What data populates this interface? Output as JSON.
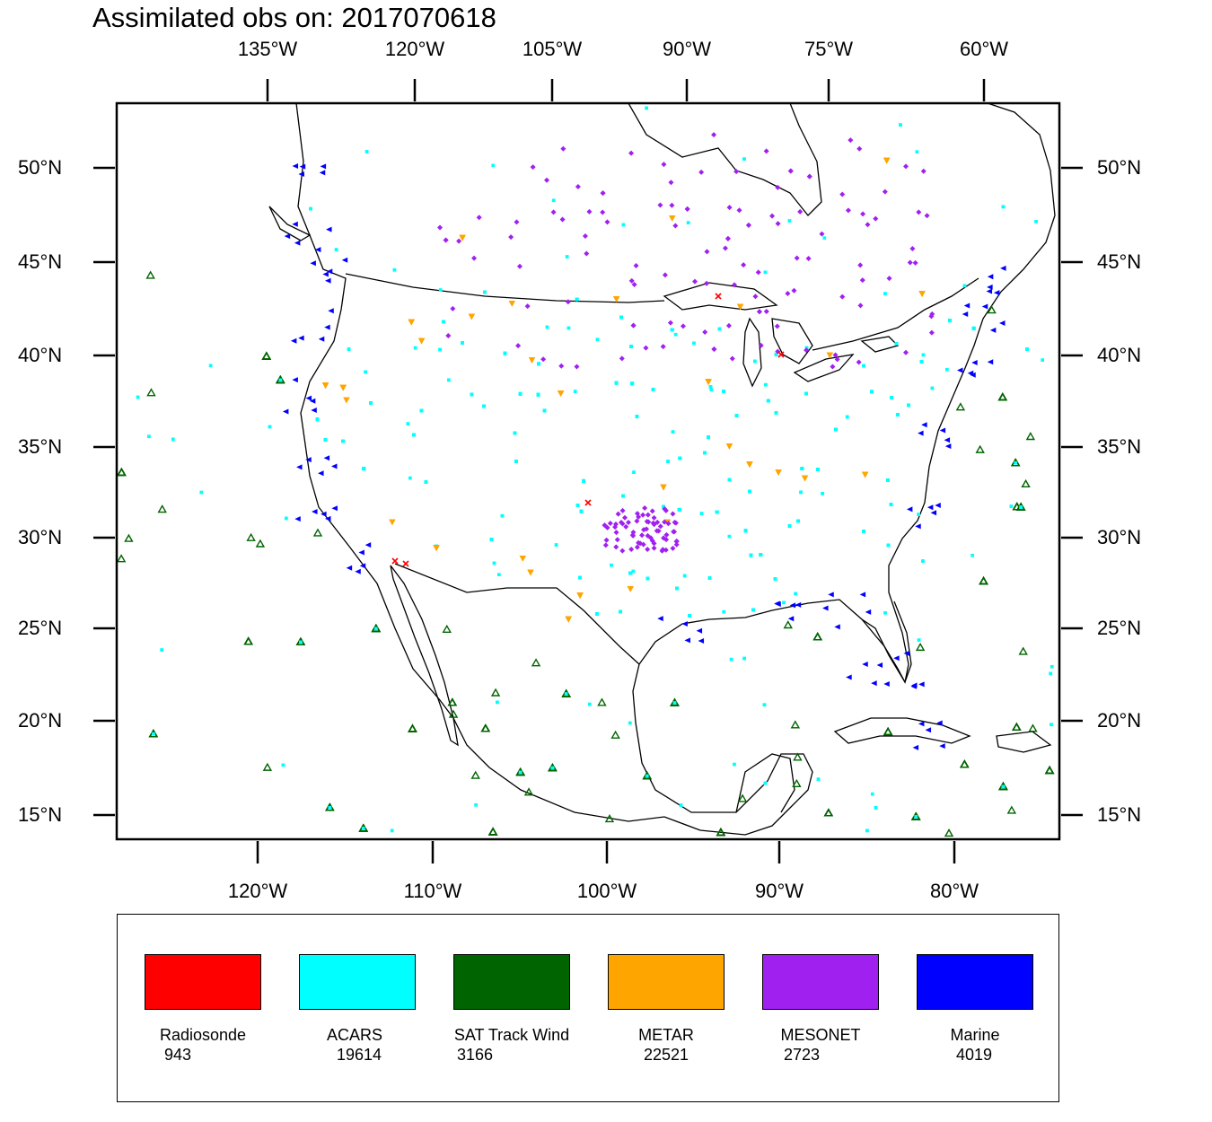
{
  "title": "Assimilated obs on: 2017070618",
  "axes": {
    "top_ticks": [
      "135°W",
      "120°W",
      "105°W",
      "90°W",
      "75°W",
      "60°W"
    ],
    "bottom_ticks": [
      "120°W",
      "110°W",
      "100°W",
      "90°W",
      "80°W"
    ],
    "left_ticks": [
      "50°N",
      "45°N",
      "40°N",
      "35°N",
      "30°N",
      "25°N",
      "20°N",
      "15°N"
    ],
    "right_ticks": [
      "50°N",
      "45°N",
      "40°N",
      "35°N",
      "30°N",
      "25°N",
      "20°N",
      "15°N"
    ]
  },
  "map": {
    "region": "Continental United States, southern Canada, Mexico, Gulf of Mexico and adjacent oceans",
    "domain_lon": [
      -128,
      -74
    ],
    "domain_lat": [
      14,
      54
    ]
  },
  "legend": {
    "items": [
      {
        "name": "Radiosonde",
        "count": "943",
        "color": "#ff0000",
        "marker": "x-mark"
      },
      {
        "name": "ACARS",
        "count": "19614",
        "color": "#00ffff",
        "marker": "square-dot"
      },
      {
        "name": "SAT Track Wind",
        "count": "3166",
        "color": "#006400",
        "marker": "open-triangle"
      },
      {
        "name": "METAR",
        "count": "22521",
        "color": "#ffa500",
        "marker": "down-triangle"
      },
      {
        "name": "MESONET",
        "count": "2723",
        "color": "#a020f0",
        "marker": "diamond"
      },
      {
        "name": "Marine",
        "count": "4019",
        "color": "#0000ff",
        "marker": "left-triangle"
      }
    ]
  }
}
